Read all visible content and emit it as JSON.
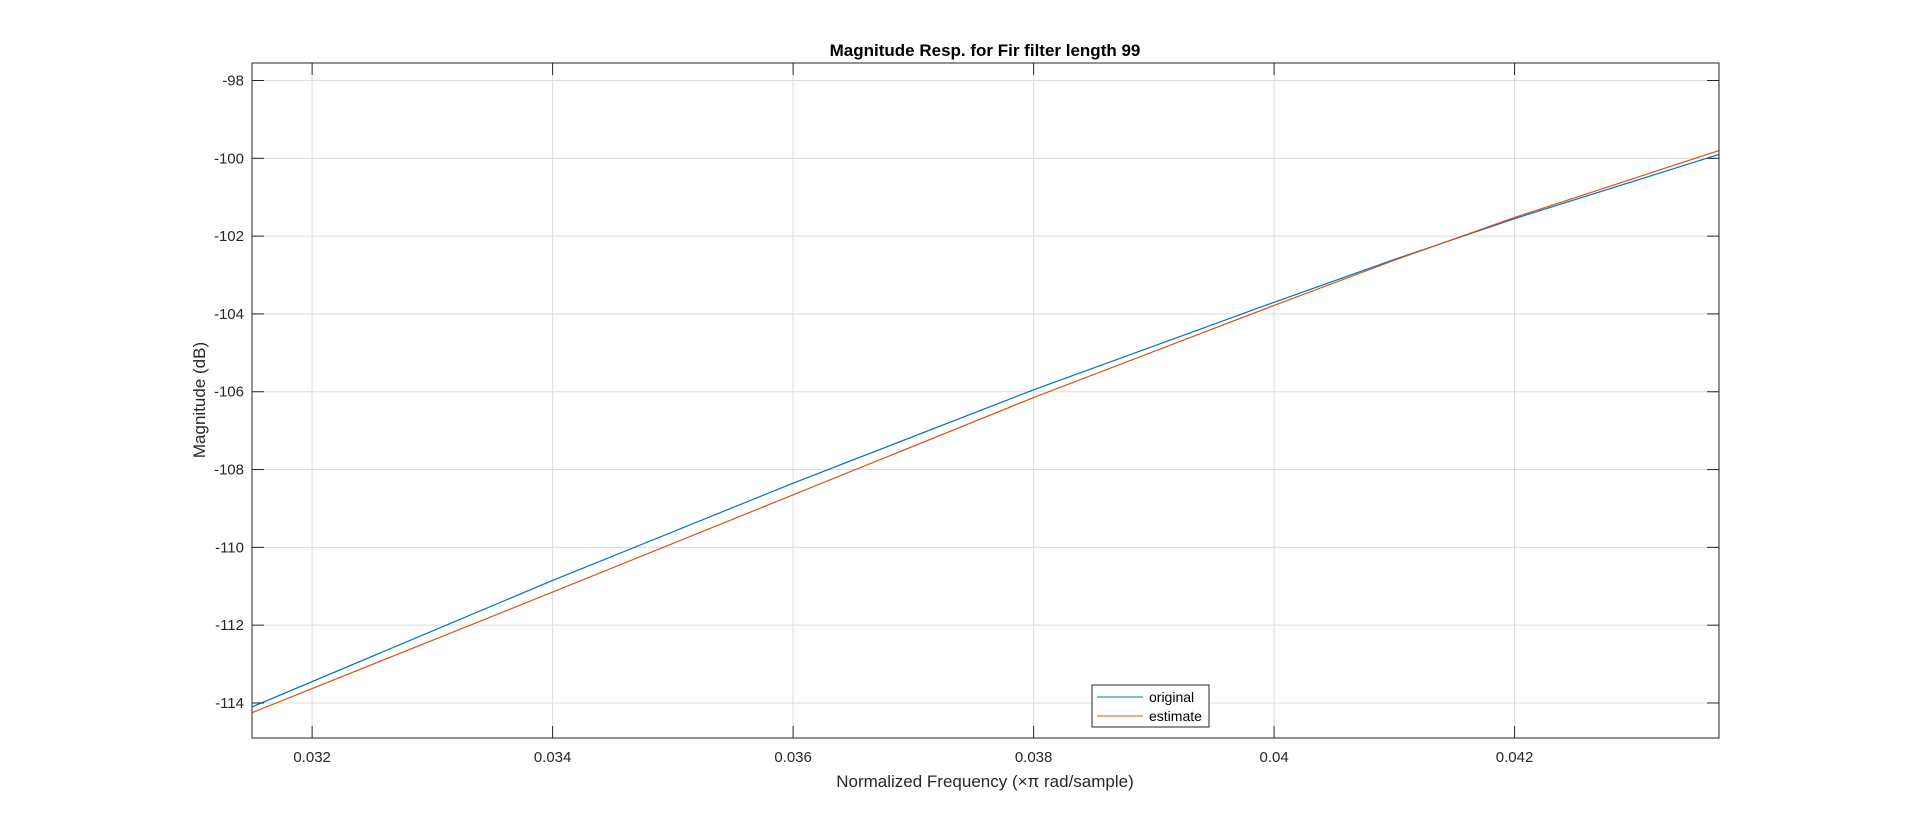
{
  "chart_data": {
    "type": "line",
    "title": "Magnitude Resp. for Fir filter length 99",
    "xlabel": "Normalized Frequency (×π rad/sample)",
    "ylabel": "Magnitude (dB)",
    "xlim": [
      0.0315,
      0.0437
    ],
    "ylim": [
      -114.9,
      -97.55
    ],
    "xticks": [
      0.032,
      0.034,
      0.036,
      0.038,
      0.04,
      0.042
    ],
    "xtick_labels": [
      "0.032",
      "0.034",
      "0.036",
      "0.038",
      "0.04",
      "0.042"
    ],
    "yticks": [
      -114,
      -112,
      -110,
      -108,
      -106,
      -104,
      -102,
      -100,
      -98
    ],
    "ytick_labels": [
      "-114",
      "-112",
      "-110",
      "-108",
      "-106",
      "-104",
      "-102",
      "-100",
      "-98"
    ],
    "grid": true,
    "legend": {
      "placement": "bottom",
      "entries": [
        "original",
        "estimate"
      ]
    },
    "series": [
      {
        "name": "original",
        "color": "#0072BD",
        "x": [
          0.0315,
          0.034,
          0.036,
          0.038,
          0.04,
          0.041,
          0.042,
          0.0437
        ],
        "y": [
          -114.1,
          -110.85,
          -108.35,
          -105.95,
          -103.7,
          -102.6,
          -101.55,
          -99.9
        ]
      },
      {
        "name": "estimate",
        "color": "#D95319",
        "x": [
          0.0315,
          0.034,
          0.036,
          0.038,
          0.04,
          0.041,
          0.042,
          0.0437
        ],
        "y": [
          -114.25,
          -111.15,
          -108.65,
          -106.15,
          -103.78,
          -102.62,
          -101.52,
          -99.8
        ]
      }
    ]
  }
}
